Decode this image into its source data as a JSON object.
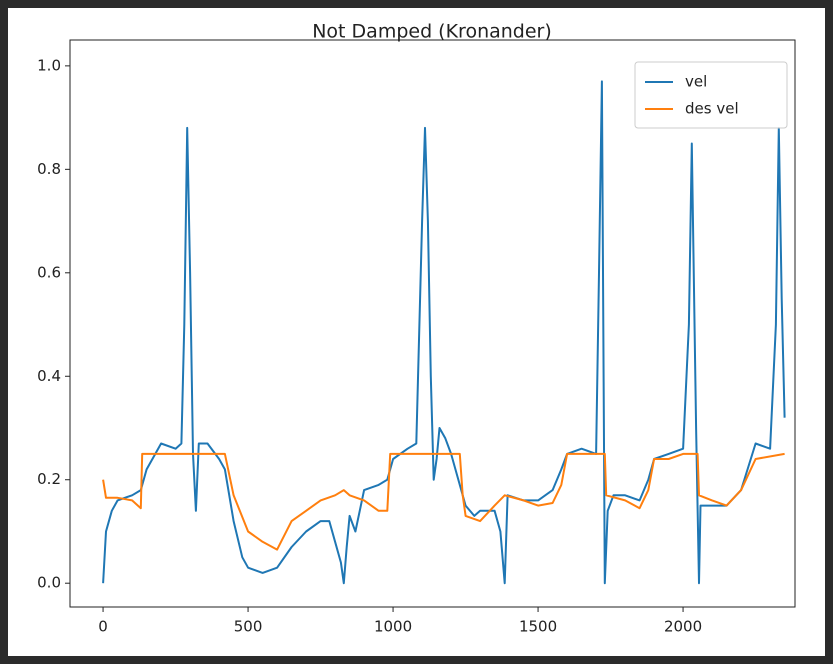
{
  "chart_data": {
    "type": "line",
    "title": "Not Damped (Kronander)",
    "xlim": [
      -114,
      2386
    ],
    "ylim": [
      -0.046,
      1.05
    ],
    "xticks": [
      0,
      500,
      1000,
      1500,
      2000
    ],
    "yticks": [
      {
        "value": 0,
        "label": "0.0"
      },
      0.2,
      0.4,
      0.6,
      0.8,
      {
        "value": 1,
        "label": "1.0"
      }
    ],
    "legend": "upper right",
    "series": [
      {
        "name": "vel",
        "color": "#1f77b4",
        "x": [
          0,
          10,
          30,
          50,
          100,
          130,
          150,
          180,
          200,
          250,
          270,
          280,
          290,
          300,
          310,
          320,
          330,
          360,
          400,
          420,
          450,
          480,
          500,
          550,
          600,
          650,
          700,
          750,
          780,
          800,
          820,
          830,
          840,
          850,
          870,
          900,
          950,
          980,
          1000,
          1050,
          1080,
          1100,
          1110,
          1120,
          1130,
          1140,
          1150,
          1160,
          1180,
          1200,
          1250,
          1280,
          1300,
          1350,
          1370,
          1385,
          1395,
          1450,
          1500,
          1550,
          1580,
          1600,
          1650,
          1700,
          1710,
          1720,
          1730,
          1740,
          1760,
          1800,
          1850,
          1880,
          1900,
          1950,
          2000,
          2020,
          2030,
          2045,
          2055,
          2060,
          2100,
          2150,
          2200,
          2250,
          2300,
          2320,
          2330,
          2340,
          2350
        ],
        "values": [
          0.0,
          0.1,
          0.14,
          0.16,
          0.17,
          0.18,
          0.22,
          0.25,
          0.27,
          0.26,
          0.27,
          0.5,
          0.88,
          0.6,
          0.25,
          0.14,
          0.27,
          0.27,
          0.24,
          0.22,
          0.12,
          0.05,
          0.03,
          0.02,
          0.03,
          0.07,
          0.1,
          0.12,
          0.12,
          0.08,
          0.04,
          0.0,
          0.07,
          0.13,
          0.1,
          0.18,
          0.19,
          0.2,
          0.24,
          0.26,
          0.27,
          0.7,
          0.88,
          0.7,
          0.4,
          0.2,
          0.24,
          0.3,
          0.28,
          0.25,
          0.15,
          0.13,
          0.14,
          0.14,
          0.1,
          0.0,
          0.17,
          0.16,
          0.16,
          0.18,
          0.22,
          0.25,
          0.26,
          0.25,
          0.6,
          0.97,
          0.0,
          0.14,
          0.17,
          0.17,
          0.16,
          0.2,
          0.24,
          0.25,
          0.26,
          0.5,
          0.85,
          0.3,
          0.0,
          0.15,
          0.15,
          0.15,
          0.18,
          0.27,
          0.26,
          0.5,
          0.88,
          0.55,
          0.32
        ]
      },
      {
        "name": "des vel",
        "color": "#ff7f0e",
        "x": [
          0,
          10,
          50,
          100,
          130,
          135,
          420,
          450,
          500,
          550,
          600,
          650,
          700,
          750,
          800,
          830,
          850,
          900,
          950,
          980,
          990,
          1230,
          1240,
          1250,
          1300,
          1350,
          1385,
          1450,
          1500,
          1550,
          1580,
          1600,
          1730,
          1735,
          1800,
          1850,
          1880,
          1900,
          1950,
          2000,
          2050,
          2055,
          2100,
          2150,
          2200,
          2250,
          2350
        ],
        "values": [
          0.2,
          0.165,
          0.165,
          0.16,
          0.145,
          0.25,
          0.25,
          0.17,
          0.1,
          0.08,
          0.065,
          0.12,
          0.14,
          0.16,
          0.17,
          0.18,
          0.17,
          0.16,
          0.14,
          0.14,
          0.25,
          0.25,
          0.17,
          0.13,
          0.12,
          0.15,
          0.17,
          0.16,
          0.15,
          0.155,
          0.19,
          0.25,
          0.25,
          0.17,
          0.16,
          0.145,
          0.18,
          0.24,
          0.24,
          0.25,
          0.25,
          0.17,
          0.16,
          0.15,
          0.18,
          0.24,
          0.25
        ]
      }
    ]
  }
}
